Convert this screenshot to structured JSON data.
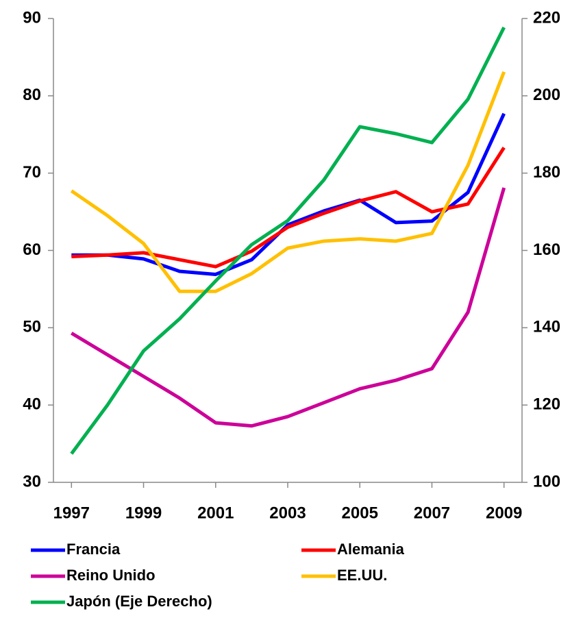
{
  "chart_data": {
    "type": "line",
    "x": [
      1997,
      1998,
      1999,
      2000,
      2001,
      2002,
      2003,
      2004,
      2005,
      2006,
      2007,
      2008,
      2009
    ],
    "xlim": [
      1996.5,
      2009.5
    ],
    "xticks": [
      1997,
      1999,
      2001,
      2003,
      2005,
      2007,
      2009
    ],
    "ylim": [
      30,
      90
    ],
    "yticks": [
      30,
      40,
      50,
      60,
      70,
      80,
      90
    ],
    "y2lim": [
      100,
      220
    ],
    "y2ticks": [
      100,
      120,
      140,
      160,
      180,
      200,
      220
    ],
    "series": [
      {
        "name": "Francia",
        "color": "#0000ff",
        "values": [
          59.4,
          59.4,
          58.9,
          57.3,
          56.9,
          58.8,
          63.3,
          65.1,
          66.5,
          63.6,
          63.8,
          67.5,
          77.7
        ]
      },
      {
        "name": "Alemania",
        "color": "#ff0000",
        "values": [
          59.2,
          59.4,
          59.7,
          58.8,
          57.9,
          59.9,
          63.0,
          64.8,
          66.4,
          67.6,
          65.0,
          66.0,
          73.3
        ]
      },
      {
        "name": "Reino Unido",
        "color": "#cc0099",
        "values": [
          49.3,
          46.5,
          43.7,
          40.9,
          37.7,
          37.3,
          38.5,
          40.3,
          42.1,
          43.2,
          44.7,
          52.0,
          68.1
        ]
      },
      {
        "name": "EE.UU.",
        "color": "#ffc000",
        "values": [
          67.7,
          64.5,
          60.9,
          54.7,
          54.7,
          57.0,
          60.3,
          61.2,
          61.5,
          61.2,
          62.2,
          71.0,
          83.1
        ]
      },
      {
        "name": "Japón (Eje Derecho)",
        "color": "#00b050",
        "axis": "y2",
        "values": [
          107.4,
          120.0,
          134.0,
          142.3,
          152.1,
          161.5,
          167.7,
          178.2,
          192.0,
          190.2,
          187.9,
          199.1,
          217.7
        ]
      }
    ]
  }
}
